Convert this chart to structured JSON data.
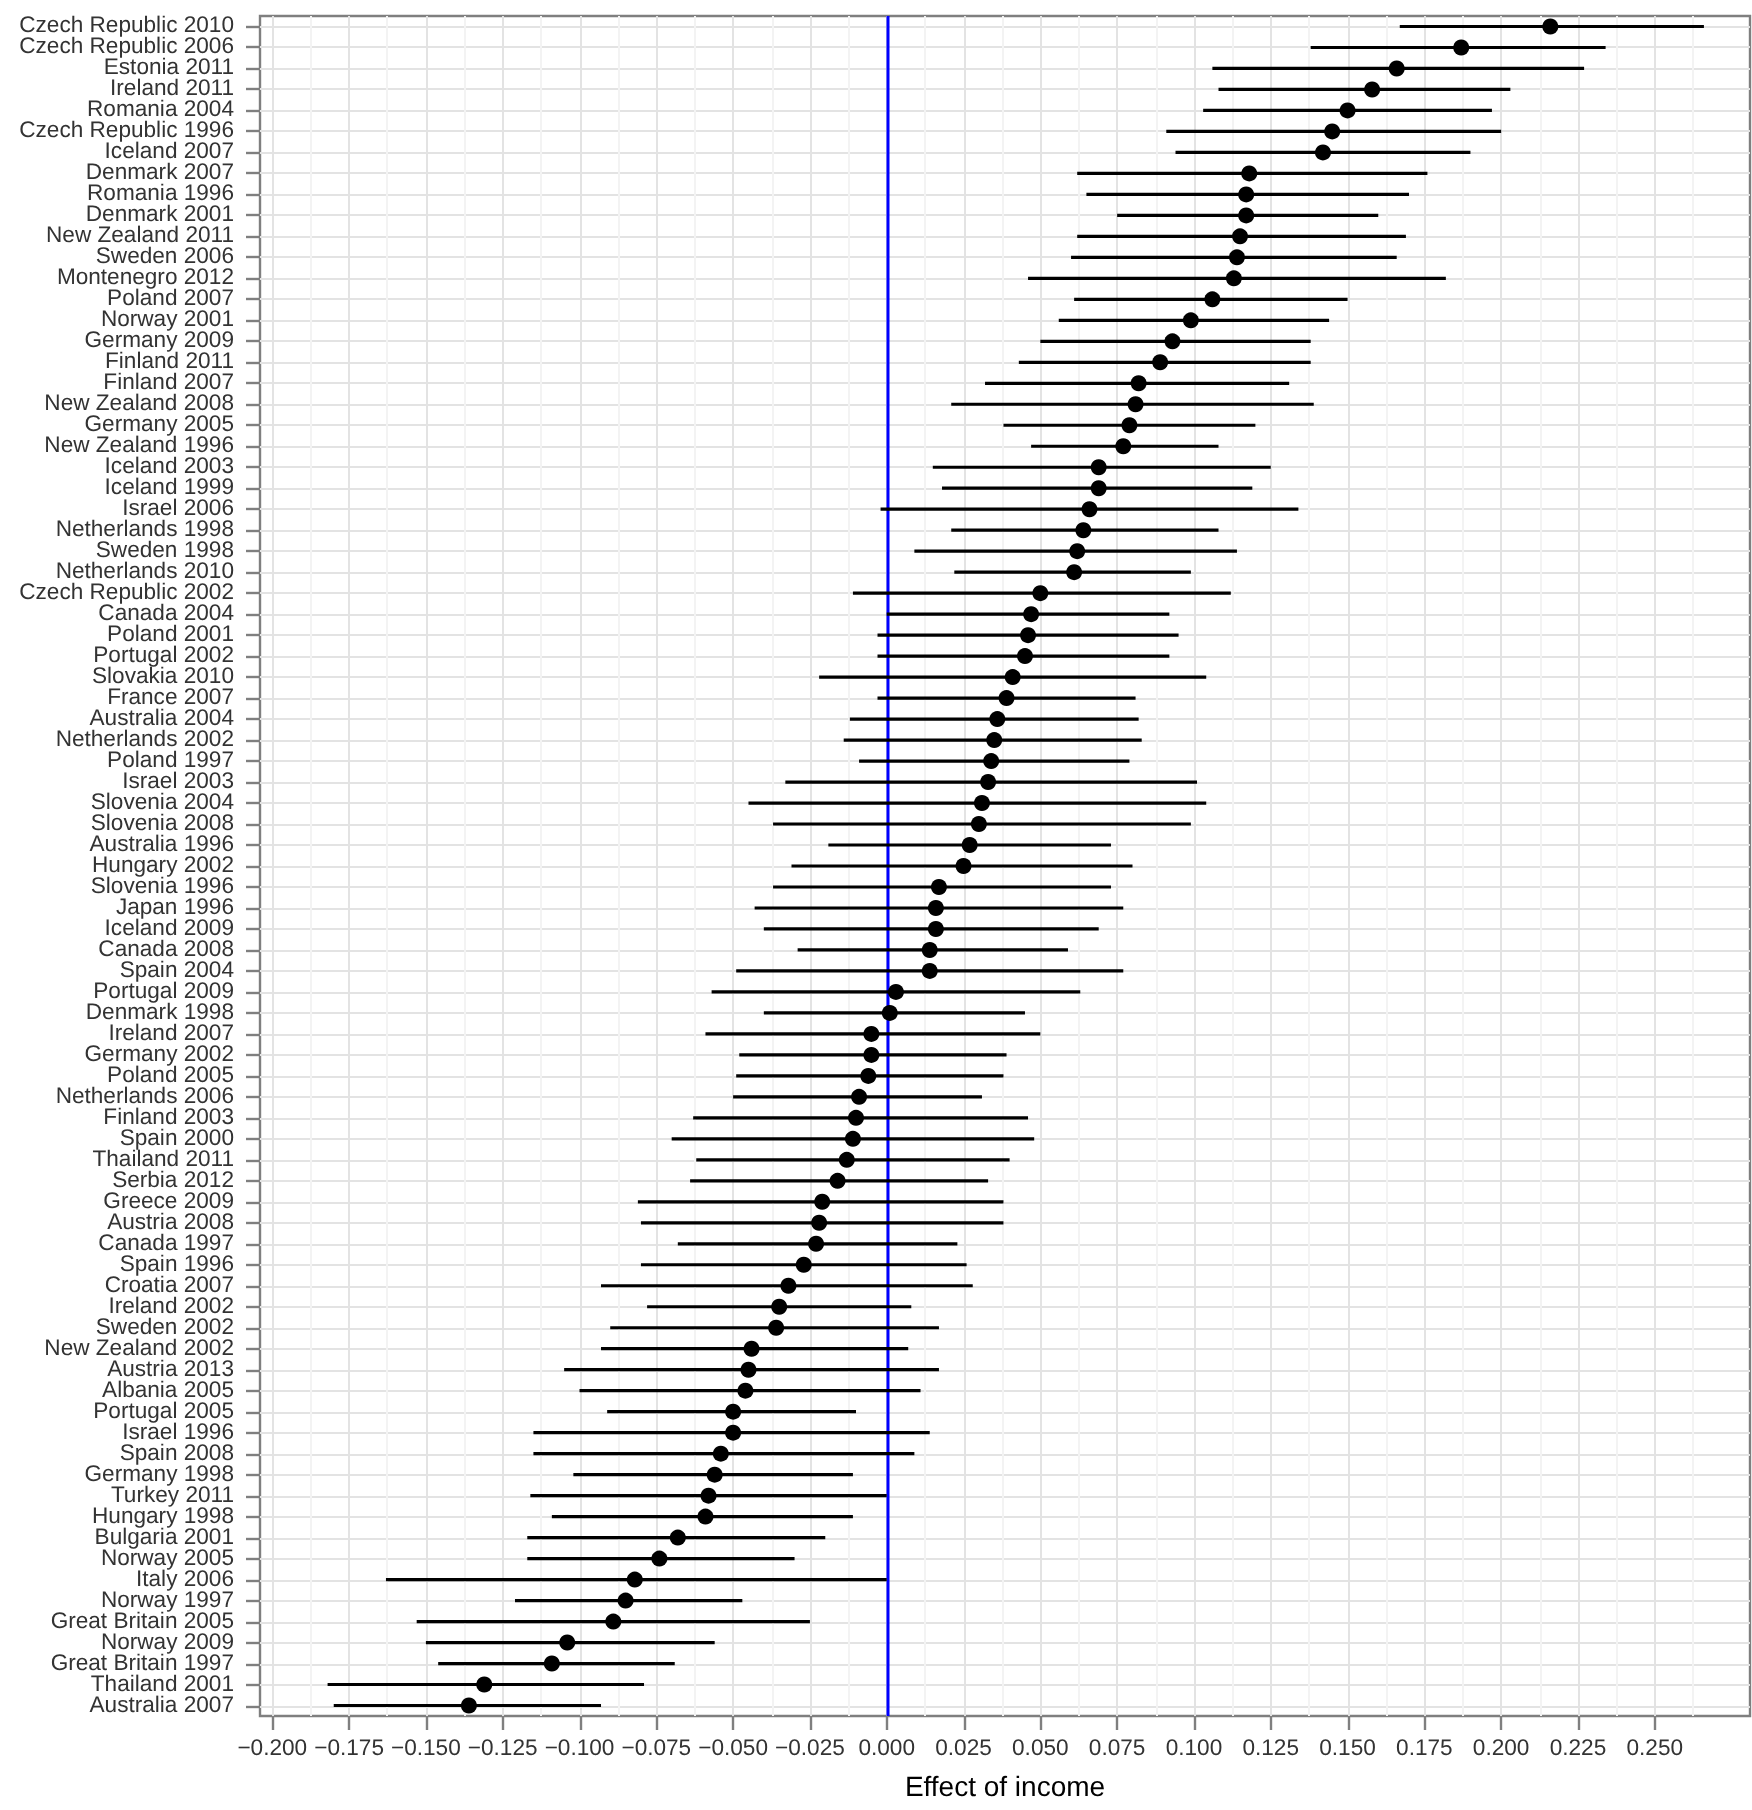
{
  "chart_data": {
    "type": "scatter",
    "orientation": "horizontal",
    "xlabel": "Effect of income",
    "categories": [
      "Czech Republic 2010",
      "Czech Republic 2006",
      "Estonia 2011",
      "Ireland 2011",
      "Romania 2004",
      "Czech Republic 1996",
      "Iceland 2007",
      "Denmark 2007",
      "Romania 1996",
      "Denmark 2001",
      "New Zealand 2011",
      "Sweden 2006",
      "Montenegro 2012",
      "Poland 2007",
      "Norway 2001",
      "Germany 2009",
      "Finland 2011",
      "Finland 2007",
      "New Zealand 2008",
      "Germany 2005",
      "New Zealand 1996",
      "Iceland 2003",
      "Iceland 1999",
      "Israel 2006",
      "Netherlands 1998",
      "Sweden 1998",
      "Netherlands 2010",
      "Czech Republic 2002",
      "Canada 2004",
      "Poland 2001",
      "Portugal 2002",
      "Slovakia 2010",
      "France 2007",
      "Australia 2004",
      "Netherlands 2002",
      "Poland 1997",
      "Israel 2003",
      "Slovenia 2004",
      "Slovenia 2008",
      "Australia 1996",
      "Hungary 2002",
      "Slovenia 1996",
      "Japan 1996",
      "Iceland 2009",
      "Canada 2008",
      "Spain 2004",
      "Portugal 2009",
      "Denmark 1998",
      "Ireland 2007",
      "Germany 2002",
      "Poland 2005",
      "Netherlands 2006",
      "Finland 2003",
      "Spain 2000",
      "Thailand 2011",
      "Serbia 2012",
      "Greece 2009",
      "Austria 2008",
      "Canada 1997",
      "Spain 1996",
      "Croatia 2007",
      "Ireland 2002",
      "Sweden 2002",
      "New Zealand 2002",
      "Austria 2013",
      "Albania 2005",
      "Portugal 2005",
      "Israel 1996",
      "Spain 2008",
      "Germany 1998",
      "Turkey 2011",
      "Hungary 1998",
      "Bulgaria 2001",
      "Norway 2005",
      "Italy 2006",
      "Norway 1997",
      "Great Britain 2005",
      "Norway 2009",
      "Great Britain 1997",
      "Thailand 2001",
      "Australia 2007"
    ],
    "values": [
      0.216,
      0.187,
      0.166,
      0.158,
      0.15,
      0.145,
      0.142,
      0.118,
      0.117,
      0.117,
      0.115,
      0.114,
      0.113,
      0.106,
      0.099,
      0.093,
      0.089,
      0.082,
      0.081,
      0.079,
      0.077,
      0.069,
      0.069,
      0.066,
      0.064,
      0.062,
      0.061,
      0.05,
      0.047,
      0.046,
      0.045,
      0.041,
      0.039,
      0.036,
      0.035,
      0.034,
      0.033,
      0.031,
      0.03,
      0.027,
      0.025,
      0.017,
      0.016,
      0.016,
      0.014,
      0.014,
      0.003,
      0.001,
      -0.005,
      -0.005,
      -0.006,
      -0.009,
      -0.01,
      -0.011,
      -0.013,
      -0.016,
      -0.021,
      -0.022,
      -0.023,
      -0.027,
      -0.032,
      -0.035,
      -0.036,
      -0.044,
      -0.045,
      -0.046,
      -0.05,
      -0.05,
      -0.054,
      -0.056,
      -0.058,
      -0.059,
      -0.068,
      -0.074,
      -0.082,
      -0.085,
      -0.089,
      -0.104,
      -0.109,
      -0.131,
      -0.136
    ],
    "errors": [
      [
        0.167,
        0.266
      ],
      [
        0.138,
        0.234
      ],
      [
        0.106,
        0.227
      ],
      [
        0.108,
        0.203
      ],
      [
        0.103,
        0.197
      ],
      [
        0.091,
        0.2
      ],
      [
        0.094,
        0.19
      ],
      [
        0.062,
        0.176
      ],
      [
        0.065,
        0.17
      ],
      [
        0.075,
        0.16
      ],
      [
        0.062,
        0.169
      ],
      [
        0.06,
        0.166
      ],
      [
        0.046,
        0.182
      ],
      [
        0.061,
        0.15
      ],
      [
        0.056,
        0.144
      ],
      [
        0.05,
        0.138
      ],
      [
        0.043,
        0.138
      ],
      [
        0.032,
        0.131
      ],
      [
        0.021,
        0.139
      ],
      [
        0.038,
        0.12
      ],
      [
        0.047,
        0.108
      ],
      [
        0.015,
        0.125
      ],
      [
        0.018,
        0.119
      ],
      [
        -0.002,
        0.134
      ],
      [
        0.021,
        0.108
      ],
      [
        0.009,
        0.114
      ],
      [
        0.022,
        0.099
      ],
      [
        -0.011,
        0.112
      ],
      [
        0.0,
        0.092
      ],
      [
        -0.003,
        0.095
      ],
      [
        -0.003,
        0.092
      ],
      [
        -0.022,
        0.104
      ],
      [
        -0.003,
        0.081
      ],
      [
        -0.012,
        0.082
      ],
      [
        -0.014,
        0.083
      ],
      [
        -0.009,
        0.079
      ],
      [
        -0.033,
        0.101
      ],
      [
        -0.045,
        0.104
      ],
      [
        -0.037,
        0.099
      ],
      [
        -0.019,
        0.073
      ],
      [
        -0.031,
        0.08
      ],
      [
        -0.037,
        0.073
      ],
      [
        -0.043,
        0.077
      ],
      [
        -0.04,
        0.069
      ],
      [
        -0.029,
        0.059
      ],
      [
        -0.049,
        0.077
      ],
      [
        -0.057,
        0.063
      ],
      [
        -0.04,
        0.045
      ],
      [
        -0.059,
        0.05
      ],
      [
        -0.048,
        0.039
      ],
      [
        -0.049,
        0.038
      ],
      [
        -0.05,
        0.031
      ],
      [
        -0.063,
        0.046
      ],
      [
        -0.07,
        0.048
      ],
      [
        -0.062,
        0.04
      ],
      [
        -0.064,
        0.033
      ],
      [
        -0.081,
        0.038
      ],
      [
        -0.08,
        0.038
      ],
      [
        -0.068,
        0.023
      ],
      [
        -0.08,
        0.026
      ],
      [
        -0.093,
        0.028
      ],
      [
        -0.078,
        0.008
      ],
      [
        -0.09,
        0.017
      ],
      [
        -0.093,
        0.007
      ],
      [
        -0.105,
        0.017
      ],
      [
        -0.1,
        0.011
      ],
      [
        -0.091,
        -0.01
      ],
      [
        -0.115,
        0.014
      ],
      [
        -0.115,
        0.009
      ],
      [
        -0.102,
        -0.011
      ],
      [
        -0.116,
        0.0
      ],
      [
        -0.109,
        -0.011
      ],
      [
        -0.117,
        -0.02
      ],
      [
        -0.117,
        -0.03
      ],
      [
        -0.163,
        0.0
      ],
      [
        -0.121,
        -0.047
      ],
      [
        -0.153,
        -0.025
      ],
      [
        -0.15,
        -0.056
      ],
      [
        -0.146,
        -0.069
      ],
      [
        -0.182,
        -0.079
      ],
      [
        -0.18,
        -0.093
      ]
    ],
    "color": "#000000",
    "marker": "circle",
    "grid": true,
    "xlim": [
      -0.204,
      0.281
    ],
    "xticks": [
      {
        "value": -0.2,
        "label": "−0.200"
      },
      {
        "value": -0.175,
        "label": "−0.175"
      },
      {
        "value": -0.15,
        "label": "−0.150"
      },
      {
        "value": -0.125,
        "label": "−0.125"
      },
      {
        "value": -0.1,
        "label": "−0.100"
      },
      {
        "value": -0.075,
        "label": "−0.075"
      },
      {
        "value": -0.05,
        "label": "−0.050"
      },
      {
        "value": -0.025,
        "label": "−0.025"
      },
      {
        "value": 0,
        "label": "0.000"
      },
      {
        "value": 0.025,
        "label": "0.025"
      },
      {
        "value": 0.05,
        "label": "0.050"
      },
      {
        "value": 0.075,
        "label": "0.075"
      },
      {
        "value": 0.1,
        "label": "0.100"
      },
      {
        "value": 0.125,
        "label": "0.125"
      },
      {
        "value": 0.15,
        "label": "0.150"
      },
      {
        "value": 0.175,
        "label": "0.175"
      },
      {
        "value": 0.2,
        "label": "0.200"
      },
      {
        "value": 0.225,
        "label": "0.225"
      },
      {
        "value": 0.25,
        "label": "0.250"
      }
    ],
    "ref_lines": [
      {
        "axis": "x",
        "value": 0,
        "color": "#0000ff"
      }
    ]
  }
}
